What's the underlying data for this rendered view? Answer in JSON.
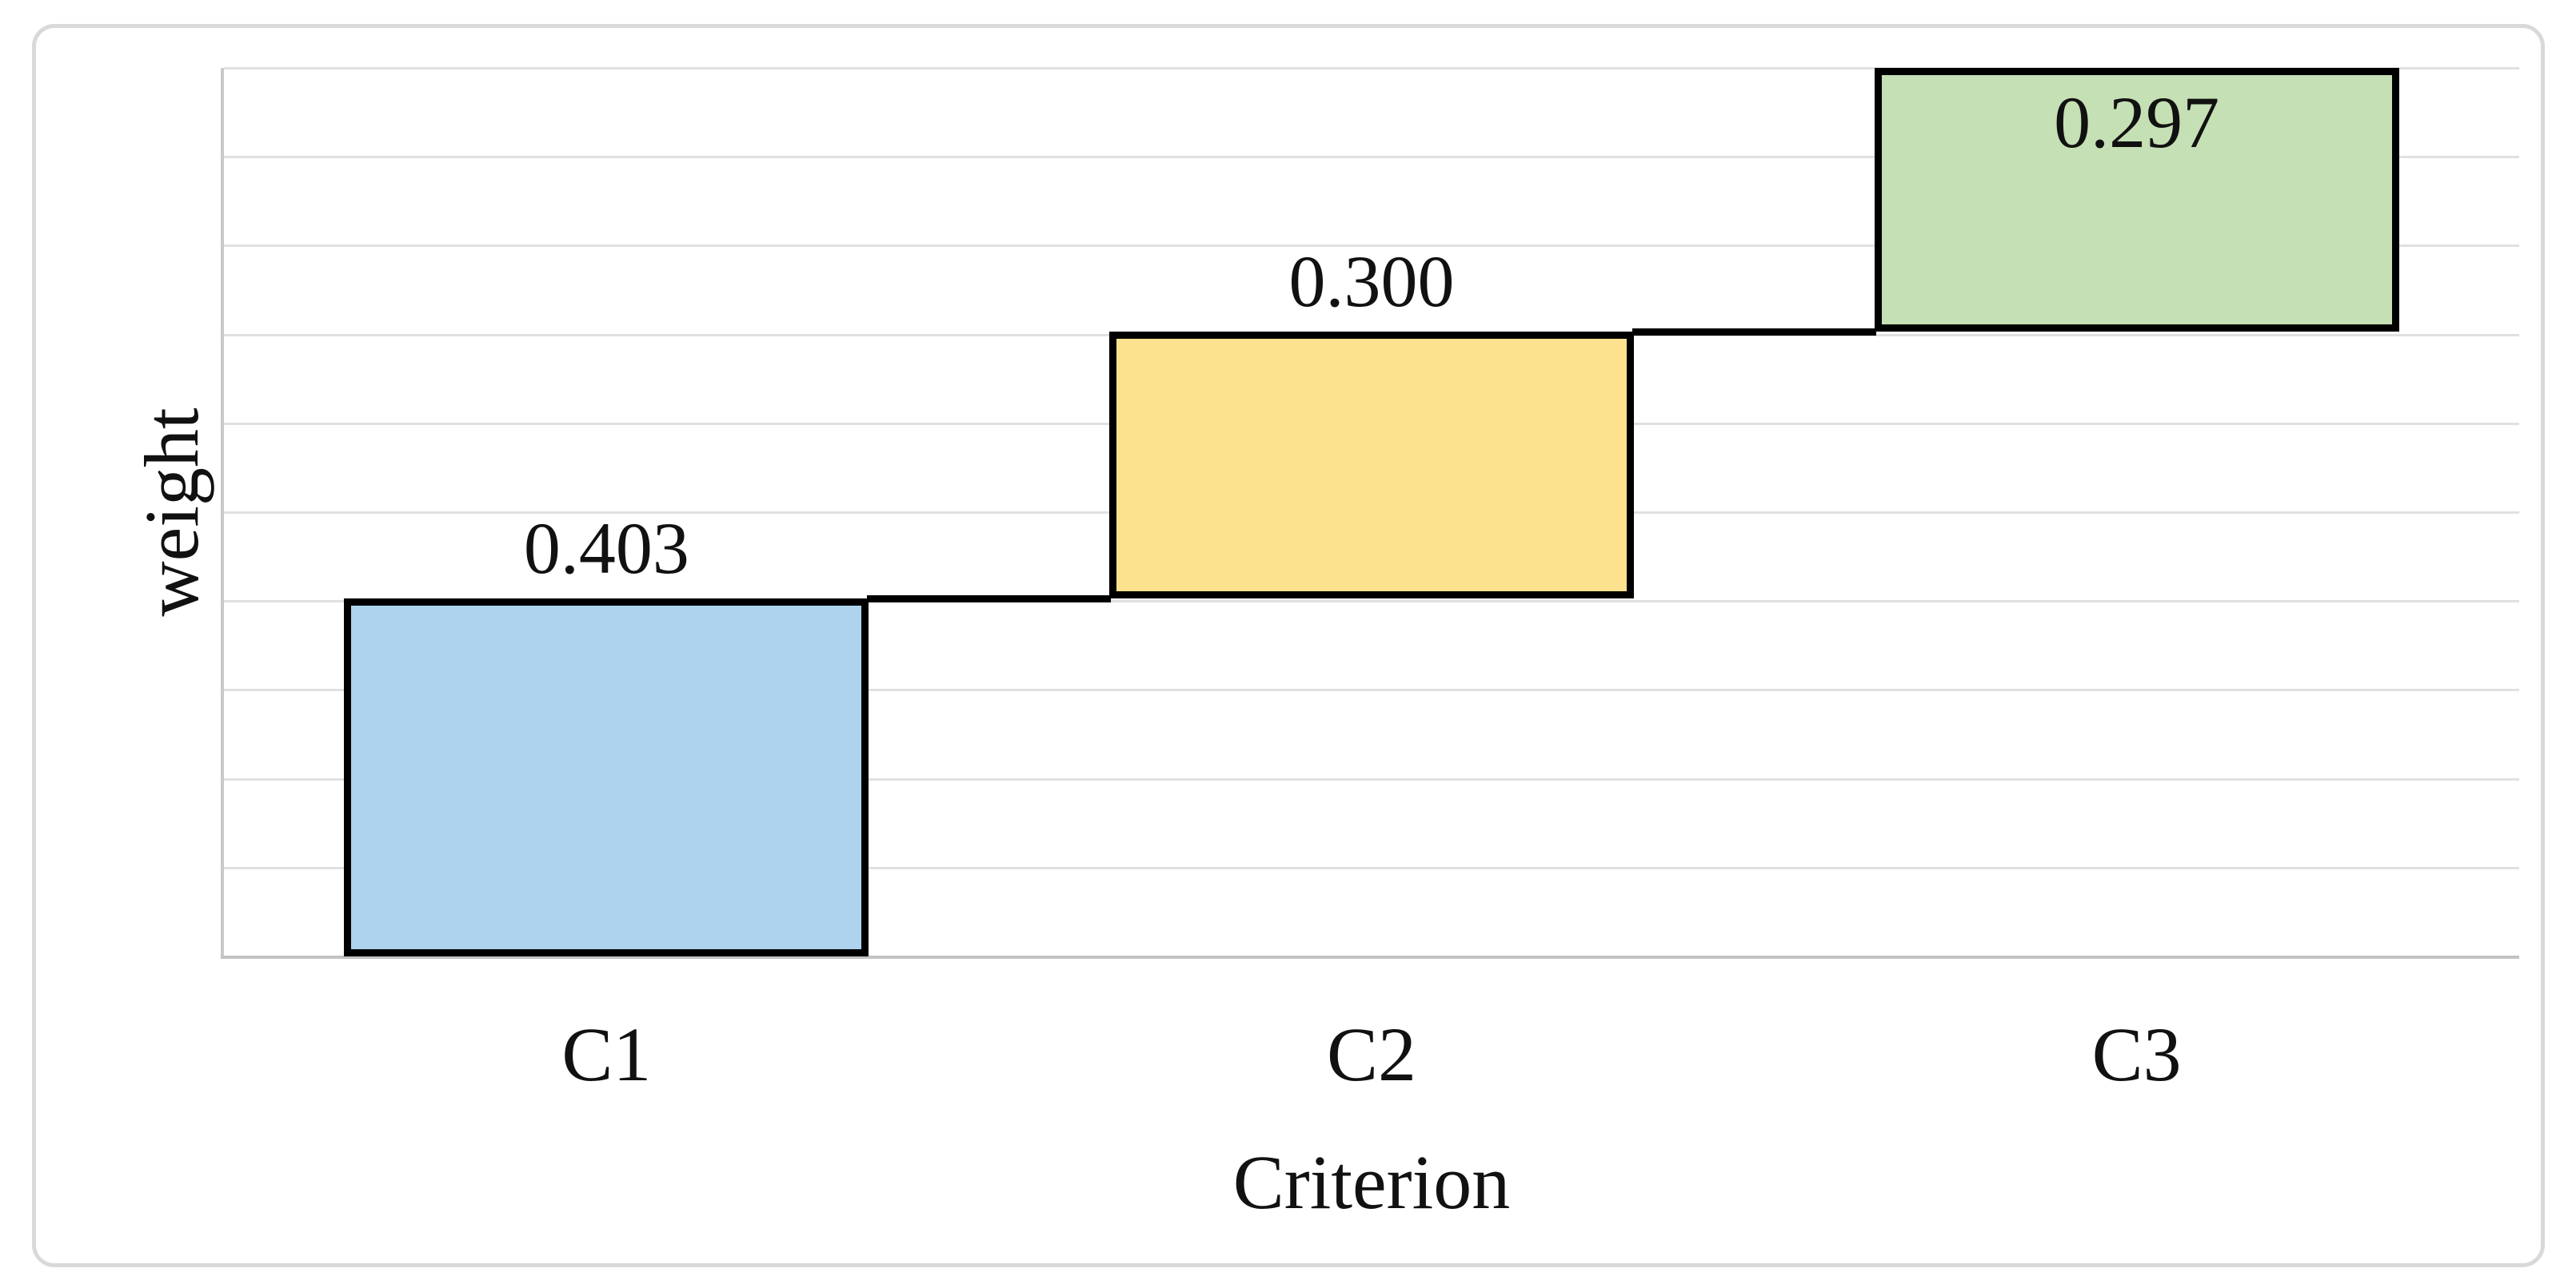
{
  "figure": {
    "background": "#ffffff",
    "border_color": "#d9d9d9"
  },
  "chart_data": {
    "type": "bar",
    "variant": "waterfall",
    "title": "",
    "xlabel": "Criterion",
    "ylabel": "weight",
    "categories": [
      "C1",
      "C2",
      "C3"
    ],
    "values": [
      0.403,
      0.3,
      0.297
    ],
    "value_labels": [
      "0.403",
      "0.300",
      "0.297"
    ],
    "cumulative_baselines": [
      0,
      0.403,
      0.703
    ],
    "value_label_placement": [
      "above",
      "above",
      "inside"
    ],
    "ylim": [
      0,
      1.0
    ],
    "gridline_step": 0.1,
    "grid": true,
    "legend": false,
    "bar_colors": [
      "#aed3ee",
      "#fce28e",
      "#c5e0b4"
    ],
    "bar_border_color": "#000000",
    "connector_color": "#000000",
    "gridline_color": "#e0e0e0",
    "axis_line_color": "#c9c9c9",
    "label_color": "#111111"
  }
}
